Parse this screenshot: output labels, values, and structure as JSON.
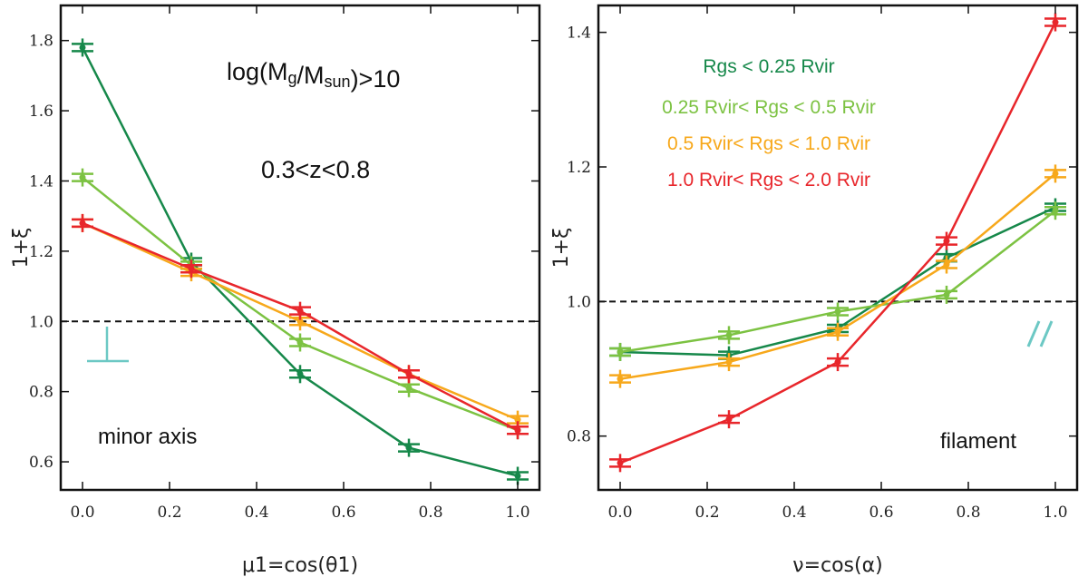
{
  "colors": {
    "dark_green": "#16884a",
    "light_green": "#7cc242",
    "orange": "#f7a81b",
    "red": "#e8262b",
    "teal": "#6cc8c4",
    "frame": "#111111"
  },
  "chart_data": [
    {
      "type": "line",
      "xlabel": "μ1=cos(θ1)",
      "ylabel": "1+ξ",
      "xlim": [
        -0.05,
        1.05
      ],
      "ylim": [
        0.52,
        1.9
      ],
      "xticks": [
        "0.0",
        "0.2",
        "0.4",
        "0.6",
        "0.8",
        "1.0"
      ],
      "yticks": [
        "0.6",
        "0.8",
        "1.0",
        "1.2",
        "1.4",
        "1.6",
        "1.8"
      ],
      "reference_line": 1.0,
      "annotations": {
        "mass_cut": "log(Mg/Msun)>10",
        "redshift": "0.3<z<0.8",
        "label": "minor axis",
        "symbol": "⊥"
      },
      "x": [
        0.0,
        0.25,
        0.5,
        0.75,
        1.0
      ],
      "series": [
        {
          "name": "Rgs < 0.25 Rvir",
          "color": "dark_green",
          "values": [
            1.78,
            1.17,
            0.85,
            0.64,
            0.56
          ]
        },
        {
          "name": "0.25 Rvir< Rgs < 0.5 Rvir",
          "color": "light_green",
          "values": [
            1.41,
            1.16,
            0.94,
            0.81,
            0.69
          ]
        },
        {
          "name": "0.5 Rvir< Rgs < 1.0 Rvir",
          "color": "orange",
          "values": [
            1.28,
            1.14,
            1.0,
            0.85,
            0.72
          ]
        },
        {
          "name": "1.0 Rvir< Rgs < 2.0 Rvir",
          "color": "red",
          "values": [
            1.28,
            1.15,
            1.03,
            0.85,
            0.69
          ]
        }
      ]
    },
    {
      "type": "line",
      "xlabel": "ν=cos(α)",
      "ylabel": "1+ξ",
      "xlim": [
        -0.05,
        1.05
      ],
      "ylim": [
        0.72,
        1.44
      ],
      "xticks": [
        "0.0",
        "0.2",
        "0.4",
        "0.6",
        "0.8",
        "1.0"
      ],
      "yticks": [
        "0.8",
        "1.0",
        "1.2",
        "1.4"
      ],
      "reference_line": 1.0,
      "annotations": {
        "label": "filament",
        "symbol": "//"
      },
      "legend": [
        {
          "text": "Rgs < 0.25 Rvir",
          "color": "dark_green"
        },
        {
          "text": "0.25 Rvir< Rgs < 0.5 Rvir",
          "color": "light_green"
        },
        {
          "text": "0.5 Rvir< Rgs < 1.0 Rvir",
          "color": "orange"
        },
        {
          "text": "1.0 Rvir< Rgs < 2.0 Rvir",
          "color": "red"
        }
      ],
      "x": [
        0.0,
        0.25,
        0.5,
        0.75,
        1.0
      ],
      "series": [
        {
          "name": "Rgs < 0.25 Rvir",
          "color": "dark_green",
          "values": [
            0.925,
            0.92,
            0.96,
            1.065,
            1.14
          ]
        },
        {
          "name": "0.25 Rvir< Rgs < 0.5 Rvir",
          "color": "light_green",
          "values": [
            0.925,
            0.95,
            0.985,
            1.01,
            1.135
          ]
        },
        {
          "name": "0.5 Rvir< Rgs < 1.0 Rvir",
          "color": "orange",
          "values": [
            0.885,
            0.91,
            0.955,
            1.055,
            1.19
          ]
        },
        {
          "name": "1.0 Rvir< Rgs < 2.0 Rvir",
          "color": "red",
          "values": [
            0.76,
            0.825,
            0.91,
            1.09,
            1.415
          ]
        }
      ]
    }
  ]
}
